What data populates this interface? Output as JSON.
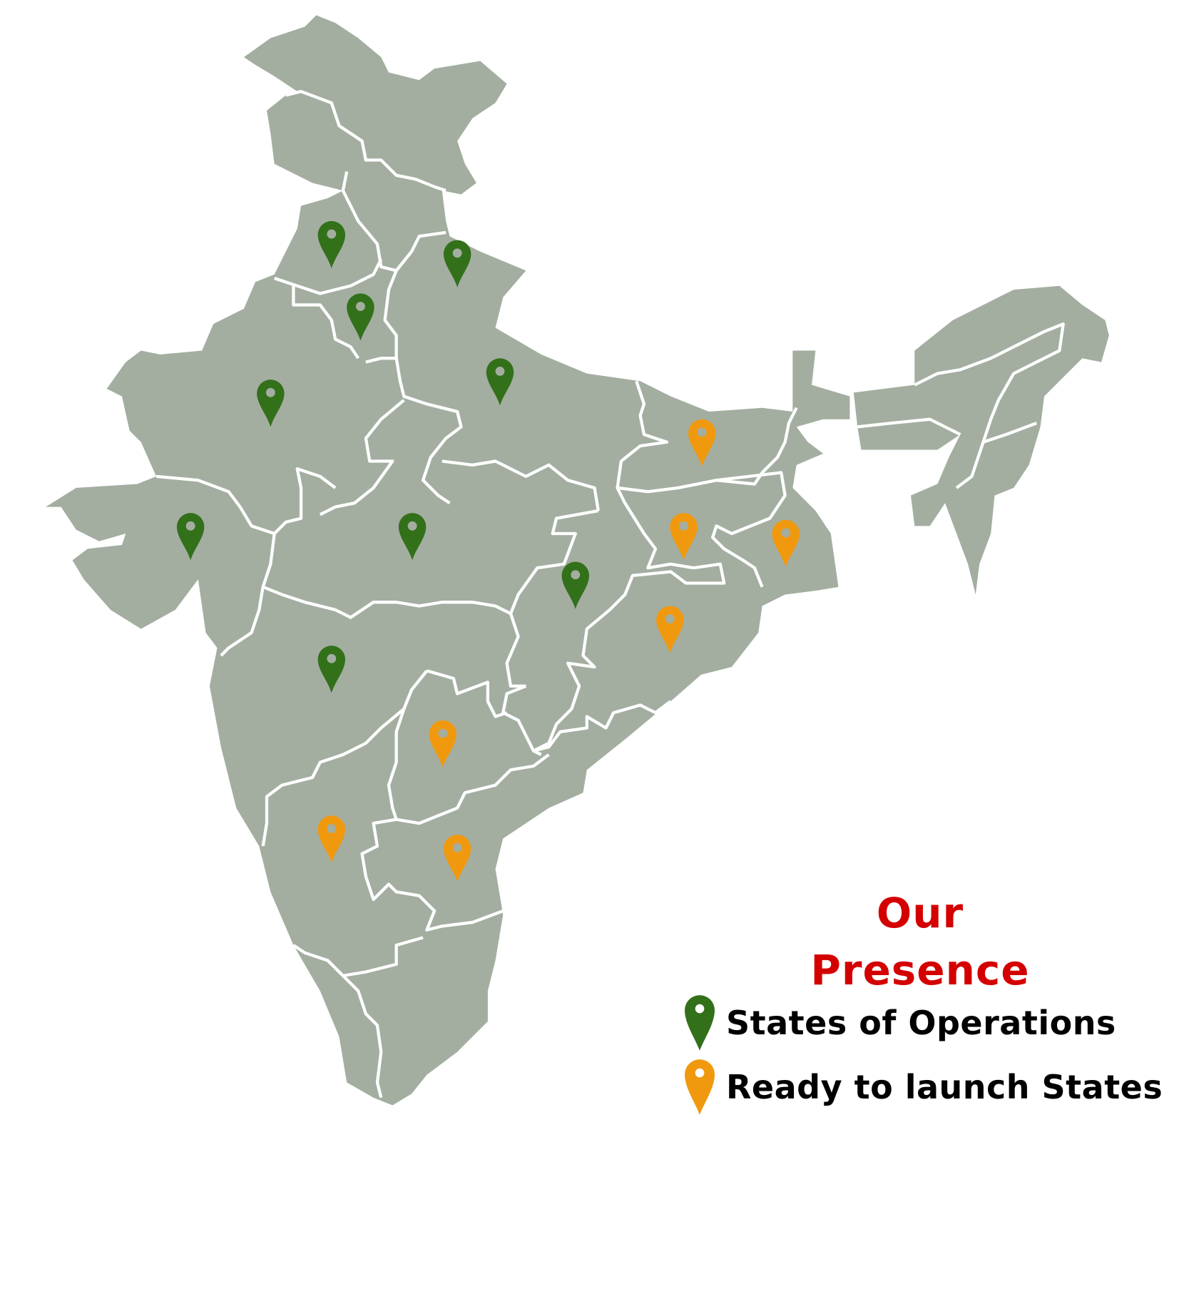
{
  "colors": {
    "land": "#a3aea1",
    "border": "#ffffff",
    "operations": "#33701a",
    "ready": "#f0990e",
    "title": "#d40000"
  },
  "legend": {
    "title": "Our Presence",
    "items": [
      {
        "key": "operations",
        "label": "States of Operations",
        "icon": "map-pin-icon"
      },
      {
        "key": "ready",
        "label": "Ready to launch States",
        "icon": "map-pin-icon"
      }
    ]
  },
  "markers": [
    {
      "status": "operations"
    },
    {
      "status": "operations"
    },
    {
      "status": "operations"
    },
    {
      "status": "operations"
    },
    {
      "status": "operations"
    },
    {
      "status": "operations"
    },
    {
      "status": "operations"
    },
    {
      "status": "operations"
    },
    {
      "status": "operations"
    },
    {
      "status": "ready"
    },
    {
      "status": "ready"
    },
    {
      "status": "ready"
    },
    {
      "status": "ready"
    },
    {
      "status": "ready"
    },
    {
      "status": "ready"
    },
    {
      "status": "ready"
    }
  ]
}
